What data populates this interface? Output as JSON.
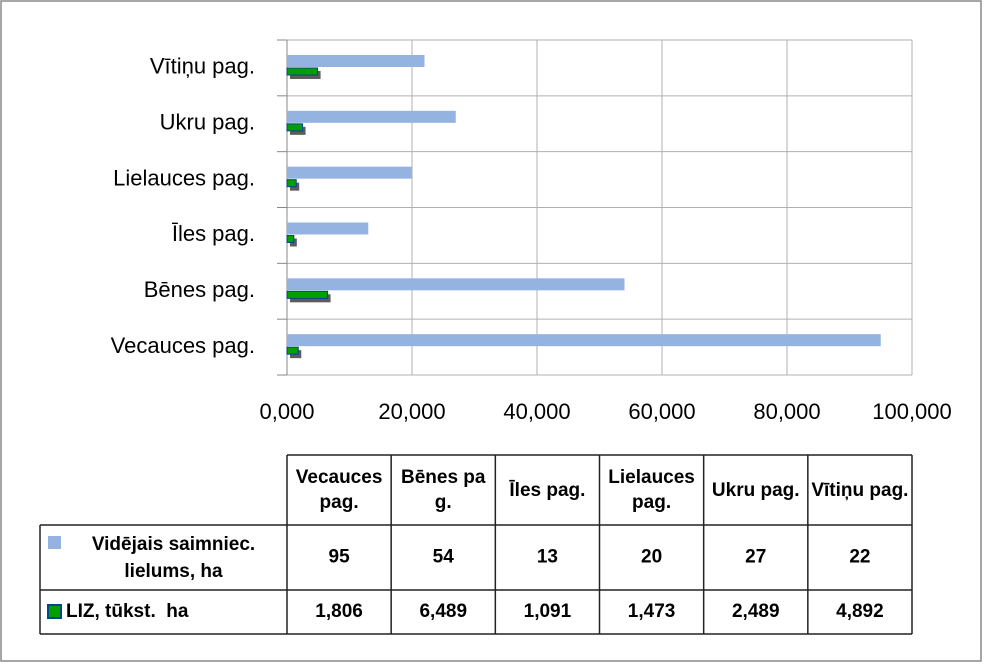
{
  "chart_data": {
    "type": "bar",
    "orientation": "horizontal",
    "categories": [
      "Vecauces pag.",
      "Bēnes pag.",
      "Īles pag.",
      "Lielauces pag.",
      "Ukru pag.",
      "Vītiņu pag."
    ],
    "series": [
      {
        "name": "Vidējais saimniec. lielums, ha",
        "color": "#95b3e0",
        "values": [
          95,
          54,
          13,
          20,
          27,
          22
        ]
      },
      {
        "name": "LIZ, tūkst.  ha",
        "color": "#00a000",
        "values": [
          1.806,
          6.489,
          1.091,
          1.473,
          2.489,
          4.892
        ],
        "value_labels": [
          "1,806",
          "6,489",
          "1,091",
          "1,473",
          "2,489",
          "4,892"
        ]
      }
    ],
    "xlim": [
      0,
      100
    ],
    "xticks": [
      {
        "value": 0,
        "label": "0,000"
      },
      {
        "value": 20,
        "label": "20,000"
      },
      {
        "value": 40,
        "label": "40,000"
      },
      {
        "value": 60,
        "label": "60,000"
      },
      {
        "value": 80,
        "label": "80,000"
      },
      {
        "value": 100,
        "label": "100,000"
      }
    ],
    "grid": true,
    "data_table": true
  }
}
